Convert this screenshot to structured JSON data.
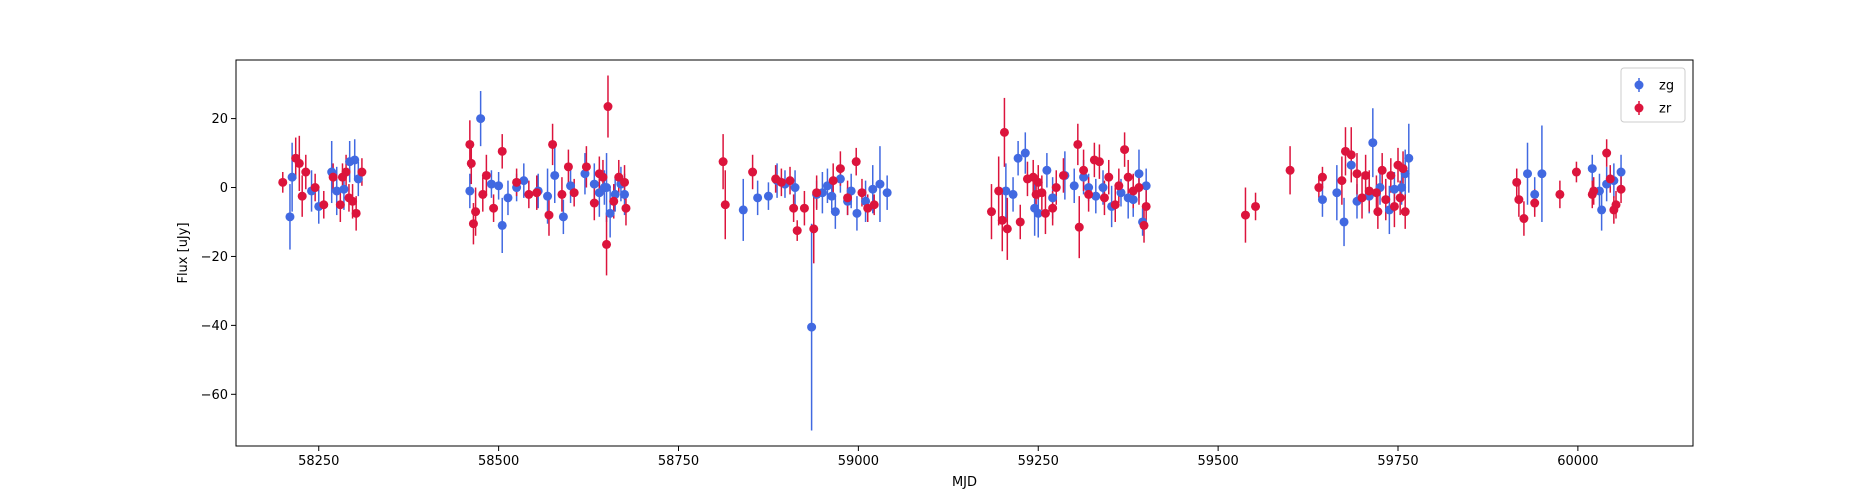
{
  "chart_data": {
    "type": "scatter",
    "title": "",
    "xlabel": "MJD",
    "ylabel": "Flux [uJy]",
    "xlim": [
      58135,
      60160
    ],
    "ylim": [
      -75,
      37
    ],
    "xticks": [
      58250,
      58500,
      58750,
      59000,
      59250,
      59500,
      59750,
      60000
    ],
    "yticks": [
      -60,
      -40,
      -20,
      0,
      20
    ],
    "grid": false,
    "legend": "top-right",
    "error_bars": true,
    "series": [
      {
        "name": "zg",
        "color": "#4169e1",
        "points": [
          [
            58210,
            -8.5,
            9.5
          ],
          [
            58213,
            3,
            10
          ],
          [
            58240,
            -1,
            6
          ],
          [
            58250,
            -5.5,
            5
          ],
          [
            58268,
            4.5,
            9
          ],
          [
            58275,
            -1,
            7
          ],
          [
            58285,
            -0.5,
            6
          ],
          [
            58293,
            7.5,
            6
          ],
          [
            58300,
            8,
            6
          ],
          [
            58305,
            2.5,
            5
          ],
          [
            58460,
            -1,
            5
          ],
          [
            58475,
            20,
            8
          ],
          [
            58490,
            1,
            4
          ],
          [
            58500,
            0.5,
            4
          ],
          [
            58505,
            -11,
            8
          ],
          [
            58513,
            -3,
            5
          ],
          [
            58525,
            0,
            4
          ],
          [
            58535,
            2,
            5
          ],
          [
            58555,
            -1,
            5
          ],
          [
            58568,
            -2.5,
            8
          ],
          [
            58578,
            3.5,
            8
          ],
          [
            58590,
            -8.5,
            5
          ],
          [
            58600,
            0.5,
            5
          ],
          [
            58620,
            4,
            6
          ],
          [
            58633,
            1,
            6
          ],
          [
            58640,
            -1.5,
            7
          ],
          [
            58647,
            0,
            5
          ],
          [
            58650,
            0,
            10
          ],
          [
            58655,
            -7.5,
            7
          ],
          [
            58662,
            -2,
            5
          ],
          [
            58670,
            1,
            5
          ],
          [
            58675,
            -2,
            6
          ],
          [
            58840,
            -6.5,
            9
          ],
          [
            58860,
            -3,
            5
          ],
          [
            58875,
            -2.5,
            4
          ],
          [
            58887,
            2,
            5
          ],
          [
            58898,
            1,
            4
          ],
          [
            58912,
            0,
            5
          ],
          [
            58935,
            -40.5,
            30
          ],
          [
            58942,
            -2,
            4
          ],
          [
            58950,
            -1.5,
            6
          ],
          [
            58957,
            0.5,
            5
          ],
          [
            58963,
            -2.5,
            4
          ],
          [
            58968,
            -7,
            5
          ],
          [
            58975,
            2.5,
            4
          ],
          [
            58985,
            -4,
            4
          ],
          [
            58990,
            -1,
            5
          ],
          [
            58998,
            -7.5,
            5
          ],
          [
            59010,
            -4,
            6
          ],
          [
            59020,
            -0.5,
            7
          ],
          [
            59030,
            1,
            11
          ],
          [
            59040,
            -1.5,
            5
          ],
          [
            59205,
            -1,
            8
          ],
          [
            59215,
            -2,
            5
          ],
          [
            59222,
            8.5,
            5
          ],
          [
            59232,
            10,
            6
          ],
          [
            59245,
            -6,
            8
          ],
          [
            59250,
            -7.5,
            7
          ],
          [
            59262,
            5,
            5
          ],
          [
            59270,
            -3,
            6
          ],
          [
            59287,
            3.5,
            7
          ],
          [
            59300,
            0.5,
            5
          ],
          [
            59313,
            3,
            5
          ],
          [
            59320,
            0,
            4
          ],
          [
            59330,
            -2.5,
            5
          ],
          [
            59340,
            0,
            5
          ],
          [
            59352,
            -5.5,
            6
          ],
          [
            59365,
            -1.5,
            4
          ],
          [
            59375,
            -3,
            6
          ],
          [
            59382,
            -3.5,
            5
          ],
          [
            59390,
            4,
            7
          ],
          [
            59395,
            -10,
            4
          ],
          [
            59400,
            0.5,
            5
          ],
          [
            59645,
            -3.5,
            5
          ],
          [
            59665,
            -1.5,
            8
          ],
          [
            59675,
            -10,
            7
          ],
          [
            59685,
            6.5,
            5
          ],
          [
            59693,
            -4,
            5
          ],
          [
            59710,
            -2.5,
            5
          ],
          [
            59715,
            13,
            10
          ],
          [
            59725,
            0,
            5
          ],
          [
            59738,
            -6.5,
            7
          ],
          [
            59745,
            -0.5,
            5
          ],
          [
            59755,
            0,
            5
          ],
          [
            59760,
            4,
            7
          ],
          [
            59765,
            8.5,
            10
          ],
          [
            59930,
            4,
            9
          ],
          [
            59940,
            -2,
            5
          ],
          [
            59950,
            4,
            14
          ],
          [
            60020,
            5.5,
            4
          ],
          [
            60030,
            -1,
            5
          ],
          [
            60033,
            -6.5,
            6
          ],
          [
            60040,
            1,
            5
          ],
          [
            60050,
            2,
            5
          ],
          [
            60060,
            4.5,
            5
          ]
        ]
      },
      {
        "name": "zr",
        "color": "#dc143c",
        "points": [
          [
            58200,
            1.5,
            3
          ],
          [
            58218,
            8.5,
            6
          ],
          [
            58223,
            7,
            8
          ],
          [
            58227,
            -2.5,
            6
          ],
          [
            58232,
            4.5,
            5
          ],
          [
            58245,
            0,
            4
          ],
          [
            58257,
            -5,
            4
          ],
          [
            58270,
            3,
            4
          ],
          [
            58280,
            -5,
            5
          ],
          [
            58283,
            3,
            4
          ],
          [
            58288,
            4.5,
            5
          ],
          [
            58292,
            -3,
            4
          ],
          [
            58297,
            -4,
            5
          ],
          [
            58302,
            -7.5,
            5
          ],
          [
            58310,
            4.5,
            4
          ],
          [
            58460,
            12.5,
            7
          ],
          [
            58462,
            7,
            6
          ],
          [
            58465,
            -10.5,
            6
          ],
          [
            58468,
            -7,
            7
          ],
          [
            58478,
            -2,
            5
          ],
          [
            58483,
            3.5,
            6
          ],
          [
            58493,
            -6,
            4
          ],
          [
            58505,
            10.5,
            5
          ],
          [
            58525,
            1.5,
            4
          ],
          [
            58542,
            -2,
            4
          ],
          [
            58553,
            -1.5,
            5
          ],
          [
            58570,
            -8,
            6
          ],
          [
            58575,
            12.5,
            6
          ],
          [
            58588,
            -2,
            5
          ],
          [
            58597,
            6,
            5
          ],
          [
            58605,
            -1.5,
            4
          ],
          [
            58622,
            6,
            6
          ],
          [
            58633,
            -4.5,
            5
          ],
          [
            58640,
            4,
            5
          ],
          [
            58645,
            3,
            5
          ],
          [
            58650,
            -16.5,
            9
          ],
          [
            58652,
            23.5,
            9
          ],
          [
            58660,
            -4,
            5
          ],
          [
            58667,
            3,
            5
          ],
          [
            58675,
            1.5,
            5
          ],
          [
            58677,
            -6,
            5
          ],
          [
            58812,
            7.5,
            8
          ],
          [
            58815,
            -5,
            10
          ],
          [
            58853,
            4.5,
            5
          ],
          [
            58885,
            2.5,
            4
          ],
          [
            58893,
            1.5,
            4
          ],
          [
            58905,
            2,
            4
          ],
          [
            58910,
            -6,
            4
          ],
          [
            58915,
            -12.5,
            3
          ],
          [
            58925,
            -6,
            5
          ],
          [
            58938,
            -12,
            10
          ],
          [
            58942,
            -1.5,
            5
          ],
          [
            58965,
            2,
            5
          ],
          [
            58975,
            5.5,
            5
          ],
          [
            58985,
            -3,
            5
          ],
          [
            58997,
            7.5,
            4
          ],
          [
            59005,
            -1.5,
            4
          ],
          [
            59013,
            -6,
            4
          ],
          [
            59022,
            -5,
            3
          ],
          [
            59185,
            -7,
            8
          ],
          [
            59195,
            -1,
            10
          ],
          [
            59200,
            -9.5,
            9
          ],
          [
            59203,
            16,
            10
          ],
          [
            59207,
            -12,
            9
          ],
          [
            59225,
            -10,
            5
          ],
          [
            59235,
            2.5,
            5
          ],
          [
            59243,
            3,
            5
          ],
          [
            59247,
            -2,
            5
          ],
          [
            59250,
            1.5,
            5
          ],
          [
            59255,
            -1.5,
            5
          ],
          [
            59260,
            -7.5,
            6
          ],
          [
            59270,
            -6,
            5
          ],
          [
            59275,
            0,
            5
          ],
          [
            59285,
            3.5,
            5
          ],
          [
            59305,
            12.5,
            6
          ],
          [
            59307,
            -11.5,
            9
          ],
          [
            59313,
            5,
            6
          ],
          [
            59320,
            -2,
            5
          ],
          [
            59328,
            8,
            5
          ],
          [
            59335,
            7.5,
            5
          ],
          [
            59342,
            -3,
            5
          ],
          [
            59348,
            3,
            5
          ],
          [
            59357,
            -5,
            5
          ],
          [
            59362,
            0.5,
            5
          ],
          [
            59370,
            11,
            5
          ],
          [
            59375,
            3,
            5
          ],
          [
            59382,
            -1,
            5
          ],
          [
            59390,
            0,
            5
          ],
          [
            59397,
            -11,
            5
          ],
          [
            59400,
            -5.5,
            5
          ],
          [
            59538,
            -8,
            8
          ],
          [
            59552,
            -5.5,
            4
          ],
          [
            59600,
            5,
            7
          ],
          [
            59640,
            0,
            3
          ],
          [
            59645,
            3,
            3
          ],
          [
            59672,
            2,
            7
          ],
          [
            59677,
            10.5,
            7
          ],
          [
            59685,
            9.5,
            8
          ],
          [
            59693,
            4,
            6
          ],
          [
            59700,
            -3,
            6
          ],
          [
            59705,
            3.5,
            6
          ],
          [
            59710,
            -1,
            6
          ],
          [
            59720,
            -1.5,
            5
          ],
          [
            59722,
            -7,
            5
          ],
          [
            59728,
            5,
            5
          ],
          [
            59733,
            -3.5,
            6
          ],
          [
            59740,
            3.5,
            5
          ],
          [
            59745,
            -5.5,
            6
          ],
          [
            59750,
            6.5,
            5
          ],
          [
            59753,
            -3,
            5
          ],
          [
            59757,
            5.5,
            5
          ],
          [
            59760,
            -7,
            5
          ],
          [
            59915,
            1.5,
            4
          ],
          [
            59918,
            -3.5,
            5
          ],
          [
            59925,
            -9,
            5
          ],
          [
            59940,
            -4.5,
            4
          ],
          [
            59975,
            -2,
            4
          ],
          [
            59998,
            4.5,
            3
          ],
          [
            60020,
            -2,
            4
          ],
          [
            60022,
            -1,
            4
          ],
          [
            60040,
            10,
            4
          ],
          [
            60045,
            2.5,
            4
          ],
          [
            60050,
            -6.5,
            4
          ],
          [
            60053,
            -5,
            4
          ],
          [
            60060,
            -0.5,
            4
          ]
        ]
      }
    ]
  }
}
